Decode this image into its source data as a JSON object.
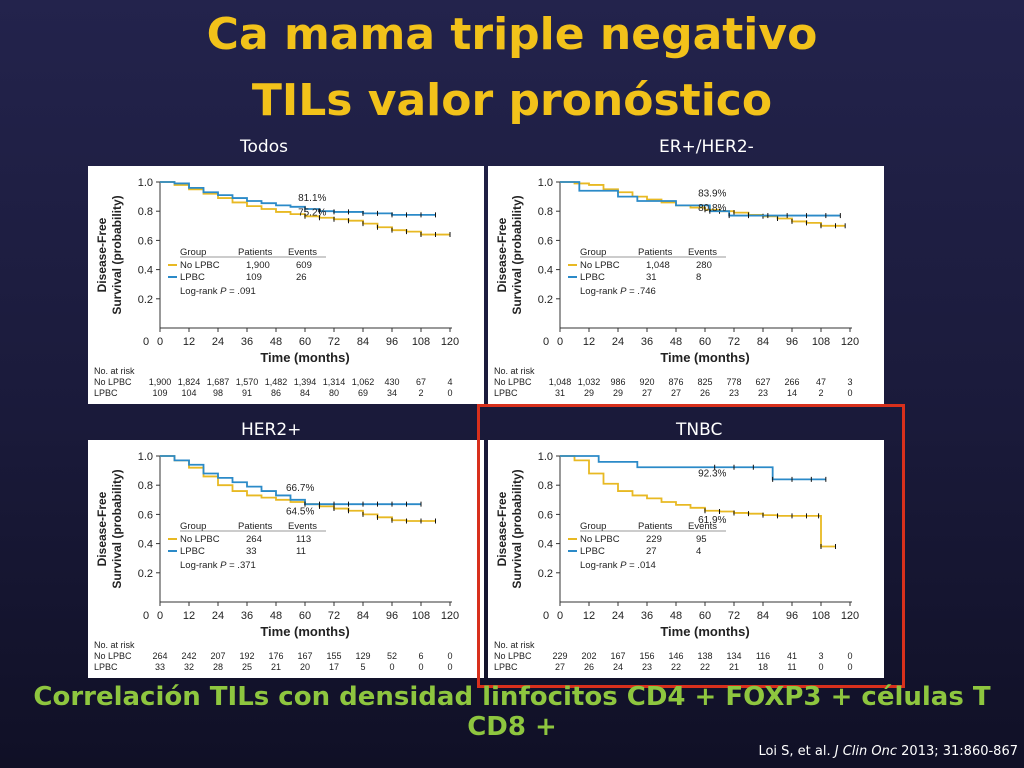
{
  "slide": {
    "title_line1": "Ca mama triple negativo",
    "title_line2": "TILs valor pronóstico",
    "footer": "Correlación TILs con densidad linfocitos CD4 +  FOXP3 + células T CD8 +",
    "citation_pre": "Loi S, et al. ",
    "citation_journal": "J Clin Onc",
    "citation_post": "  2013; 31:860-867",
    "highlight_color": "#d8301c",
    "title_color": "#f2c21a",
    "footer_color": "#8ec63f"
  },
  "chart_data": [
    {
      "type": "line",
      "panel_label": "Todos",
      "ylabel_line1": "Disease-Free",
      "ylabel_line2": "Survival (probability)",
      "xlabel": "Time (months)",
      "xticks": [
        "0",
        "12",
        "24",
        "36",
        "48",
        "60",
        "72",
        "84",
        "96",
        "108",
        "120"
      ],
      "yticks": [
        "0.2",
        "0.4",
        "0.6",
        "0.8",
        "1.0"
      ],
      "xlim": [
        0,
        120
      ],
      "ylim": [
        0,
        1.0
      ],
      "legend_header": [
        "Group",
        "Patients",
        "Events"
      ],
      "legend_rows": [
        [
          "No LPBC",
          "1,900",
          "609"
        ],
        [
          "LPBC",
          "109",
          "26"
        ]
      ],
      "logrank_label": "Log-rank ",
      "logrank_p": "P",
      "logrank_value": " = .091",
      "annotations": [
        {
          "text": "81.1%",
          "x": 63,
          "y": 0.87
        },
        {
          "text": "75.2%",
          "x": 63,
          "y": 0.77
        }
      ],
      "series": [
        {
          "name": "No LPBC",
          "color": "#e8b923",
          "x": [
            0,
            6,
            12,
            18,
            24,
            30,
            36,
            42,
            48,
            54,
            60,
            66,
            72,
            78,
            84,
            90,
            96,
            102,
            108,
            114,
            120
          ],
          "y": [
            1.0,
            0.98,
            0.95,
            0.92,
            0.89,
            0.86,
            0.835,
            0.815,
            0.795,
            0.78,
            0.765,
            0.755,
            0.745,
            0.735,
            0.715,
            0.69,
            0.67,
            0.66,
            0.64,
            0.64,
            0.64
          ]
        },
        {
          "name": "LPBC",
          "color": "#2b8ac8",
          "x": [
            0,
            6,
            12,
            18,
            24,
            30,
            36,
            42,
            48,
            54,
            60,
            66,
            72,
            78,
            84,
            90,
            96,
            102,
            108,
            114
          ],
          "y": [
            1.0,
            0.99,
            0.96,
            0.93,
            0.91,
            0.89,
            0.87,
            0.855,
            0.84,
            0.83,
            0.815,
            0.8,
            0.795,
            0.795,
            0.785,
            0.785,
            0.775,
            0.775,
            0.775,
            0.775
          ]
        }
      ],
      "risk_title": "No. at risk",
      "risk_table": [
        {
          "group": "No LPBC",
          "values": [
            "1,900",
            "1,824",
            "1,687",
            "1,570",
            "1,482",
            "1,394",
            "1,314",
            "1,062",
            "430",
            "67",
            "4"
          ]
        },
        {
          "group": "LPBC",
          "values": [
            "109",
            "104",
            "98",
            "91",
            "86",
            "84",
            "80",
            "69",
            "34",
            "2",
            "0"
          ]
        }
      ]
    },
    {
      "type": "line",
      "panel_label": "ER+/HER2-",
      "ylabel_line1": "Disease-Free",
      "ylabel_line2": "Survival (probability)",
      "xlabel": "Time (months)",
      "xticks": [
        "0",
        "12",
        "24",
        "36",
        "48",
        "60",
        "72",
        "84",
        "96",
        "108",
        "120"
      ],
      "yticks": [
        "0.2",
        "0.4",
        "0.6",
        "0.8",
        "1.0"
      ],
      "xlim": [
        0,
        120
      ],
      "ylim": [
        0,
        1.0
      ],
      "legend_header": [
        "Group",
        "Patients",
        "Events"
      ],
      "legend_rows": [
        [
          "No LPBC",
          "1,048",
          "280"
        ],
        [
          "LPBC",
          "31",
          "8"
        ]
      ],
      "logrank_label": "Log-rank ",
      "logrank_p": "P",
      "logrank_value": " = .746",
      "annotations": [
        {
          "text": "83.9%",
          "x": 63,
          "y": 0.9
        },
        {
          "text": "80.8%",
          "x": 63,
          "y": 0.8
        }
      ],
      "series": [
        {
          "name": "No LPBC",
          "color": "#e8b923",
          "x": [
            0,
            6,
            12,
            18,
            24,
            30,
            36,
            42,
            48,
            54,
            60,
            66,
            72,
            78,
            84,
            90,
            96,
            102,
            108,
            114,
            118
          ],
          "y": [
            1.0,
            0.99,
            0.98,
            0.95,
            0.93,
            0.9,
            0.88,
            0.86,
            0.84,
            0.825,
            0.81,
            0.8,
            0.79,
            0.775,
            0.765,
            0.75,
            0.73,
            0.72,
            0.7,
            0.7,
            0.7
          ]
        },
        {
          "name": "LPBC",
          "color": "#2b8ac8",
          "x": [
            0,
            8,
            16,
            24,
            32,
            40,
            48,
            56,
            62,
            70,
            78,
            86,
            94,
            102,
            110,
            116
          ],
          "y": [
            1.0,
            0.94,
            0.94,
            0.9,
            0.87,
            0.87,
            0.84,
            0.84,
            0.8,
            0.77,
            0.77,
            0.77,
            0.77,
            0.77,
            0.77,
            0.77
          ]
        }
      ],
      "risk_title": "No. at risk",
      "risk_table": [
        {
          "group": "No LPBC",
          "values": [
            "1,048",
            "1,032",
            "986",
            "920",
            "876",
            "825",
            "778",
            "627",
            "266",
            "47",
            "3"
          ]
        },
        {
          "group": "LPBC",
          "values": [
            "31",
            "29",
            "29",
            "27",
            "27",
            "26",
            "23",
            "23",
            "14",
            "2",
            "0"
          ]
        }
      ]
    },
    {
      "type": "line",
      "panel_label": "HER2+",
      "ylabel_line1": "Disease-Free",
      "ylabel_line2": "Survival (probability)",
      "xlabel": "Time (months)",
      "xticks": [
        "0",
        "12",
        "24",
        "36",
        "48",
        "60",
        "72",
        "84",
        "96",
        "108",
        "120"
      ],
      "yticks": [
        "0.2",
        "0.4",
        "0.6",
        "0.8",
        "1.0"
      ],
      "xlim": [
        0,
        120
      ],
      "ylim": [
        0,
        1.0
      ],
      "legend_header": [
        "Group",
        "Patients",
        "Events"
      ],
      "legend_rows": [
        [
          "No LPBC",
          "264",
          "113"
        ],
        [
          "LPBC",
          "33",
          "11"
        ]
      ],
      "logrank_label": "Log-rank ",
      "logrank_p": "P",
      "logrank_value": " = .371",
      "annotations": [
        {
          "text": "66.7%",
          "x": 58,
          "y": 0.76
        },
        {
          "text": "64.5%",
          "x": 58,
          "y": 0.6
        }
      ],
      "series": [
        {
          "name": "No LPBC",
          "color": "#e8b923",
          "x": [
            0,
            6,
            12,
            18,
            24,
            30,
            36,
            42,
            48,
            54,
            60,
            66,
            72,
            78,
            84,
            90,
            96,
            102,
            108,
            114
          ],
          "y": [
            1.0,
            0.97,
            0.92,
            0.86,
            0.8,
            0.76,
            0.73,
            0.715,
            0.7,
            0.685,
            0.67,
            0.655,
            0.64,
            0.625,
            0.6,
            0.58,
            0.56,
            0.555,
            0.555,
            0.555
          ]
        },
        {
          "name": "LPBC",
          "color": "#2b8ac8",
          "x": [
            0,
            6,
            12,
            18,
            24,
            30,
            36,
            42,
            48,
            54,
            60,
            66,
            72,
            78,
            84,
            90,
            96,
            102,
            108
          ],
          "y": [
            1.0,
            0.97,
            0.94,
            0.88,
            0.85,
            0.82,
            0.79,
            0.76,
            0.73,
            0.7,
            0.67,
            0.67,
            0.67,
            0.67,
            0.67,
            0.67,
            0.67,
            0.67,
            0.67
          ]
        }
      ],
      "risk_title": "No. at risk",
      "risk_table": [
        {
          "group": "No LPBC",
          "values": [
            "264",
            "242",
            "207",
            "192",
            "176",
            "167",
            "155",
            "129",
            "52",
            "6",
            "0"
          ]
        },
        {
          "group": "LPBC",
          "values": [
            "33",
            "32",
            "28",
            "25",
            "21",
            "20",
            "17",
            "5",
            "0",
            "0",
            "0"
          ]
        }
      ]
    },
    {
      "type": "line",
      "panel_label": "TNBC",
      "ylabel_line1": "Disease-Free",
      "ylabel_line2": "Survival (probability)",
      "xlabel": "Time (months)",
      "xticks": [
        "0",
        "12",
        "24",
        "36",
        "48",
        "60",
        "72",
        "84",
        "96",
        "108",
        "120"
      ],
      "yticks": [
        "0.2",
        "0.4",
        "0.6",
        "0.8",
        "1.0"
      ],
      "xlim": [
        0,
        120
      ],
      "ylim": [
        0,
        1.0
      ],
      "legend_header": [
        "Group",
        "Patients",
        "Events"
      ],
      "legend_rows": [
        [
          "No LPBC",
          "229",
          "95"
        ],
        [
          "LPBC",
          "27",
          "4"
        ]
      ],
      "logrank_label": "Log-rank ",
      "logrank_p": "P",
      "logrank_value": " = .014",
      "annotations": [
        {
          "text": "92.3%",
          "x": 63,
          "y": 0.86
        },
        {
          "text": "61.9%",
          "x": 63,
          "y": 0.54
        }
      ],
      "series": [
        {
          "name": "No LPBC",
          "color": "#e8b923",
          "x": [
            0,
            6,
            12,
            18,
            24,
            30,
            36,
            42,
            48,
            54,
            60,
            66,
            72,
            78,
            84,
            90,
            96,
            102,
            107,
            108,
            114
          ],
          "y": [
            1.0,
            0.97,
            0.88,
            0.81,
            0.76,
            0.73,
            0.71,
            0.685,
            0.665,
            0.645,
            0.625,
            0.62,
            0.61,
            0.605,
            0.595,
            0.59,
            0.59,
            0.59,
            0.59,
            0.38,
            0.38
          ]
        },
        {
          "name": "LPBC",
          "color": "#2b8ac8",
          "x": [
            0,
            8,
            16,
            24,
            32,
            40,
            48,
            56,
            64,
            72,
            80,
            88,
            96,
            104,
            110
          ],
          "y": [
            1.0,
            1.0,
            0.96,
            0.96,
            0.923,
            0.923,
            0.923,
            0.923,
            0.923,
            0.923,
            0.923,
            0.84,
            0.84,
            0.84,
            0.84
          ]
        }
      ],
      "risk_title": "No. at risk",
      "risk_table": [
        {
          "group": "No LPBC",
          "values": [
            "229",
            "202",
            "167",
            "156",
            "146",
            "138",
            "134",
            "116",
            "41",
            "3",
            "0"
          ]
        },
        {
          "group": "LPBC",
          "values": [
            "27",
            "26",
            "24",
            "23",
            "22",
            "22",
            "21",
            "18",
            "11",
            "0",
            "0"
          ]
        }
      ]
    }
  ]
}
